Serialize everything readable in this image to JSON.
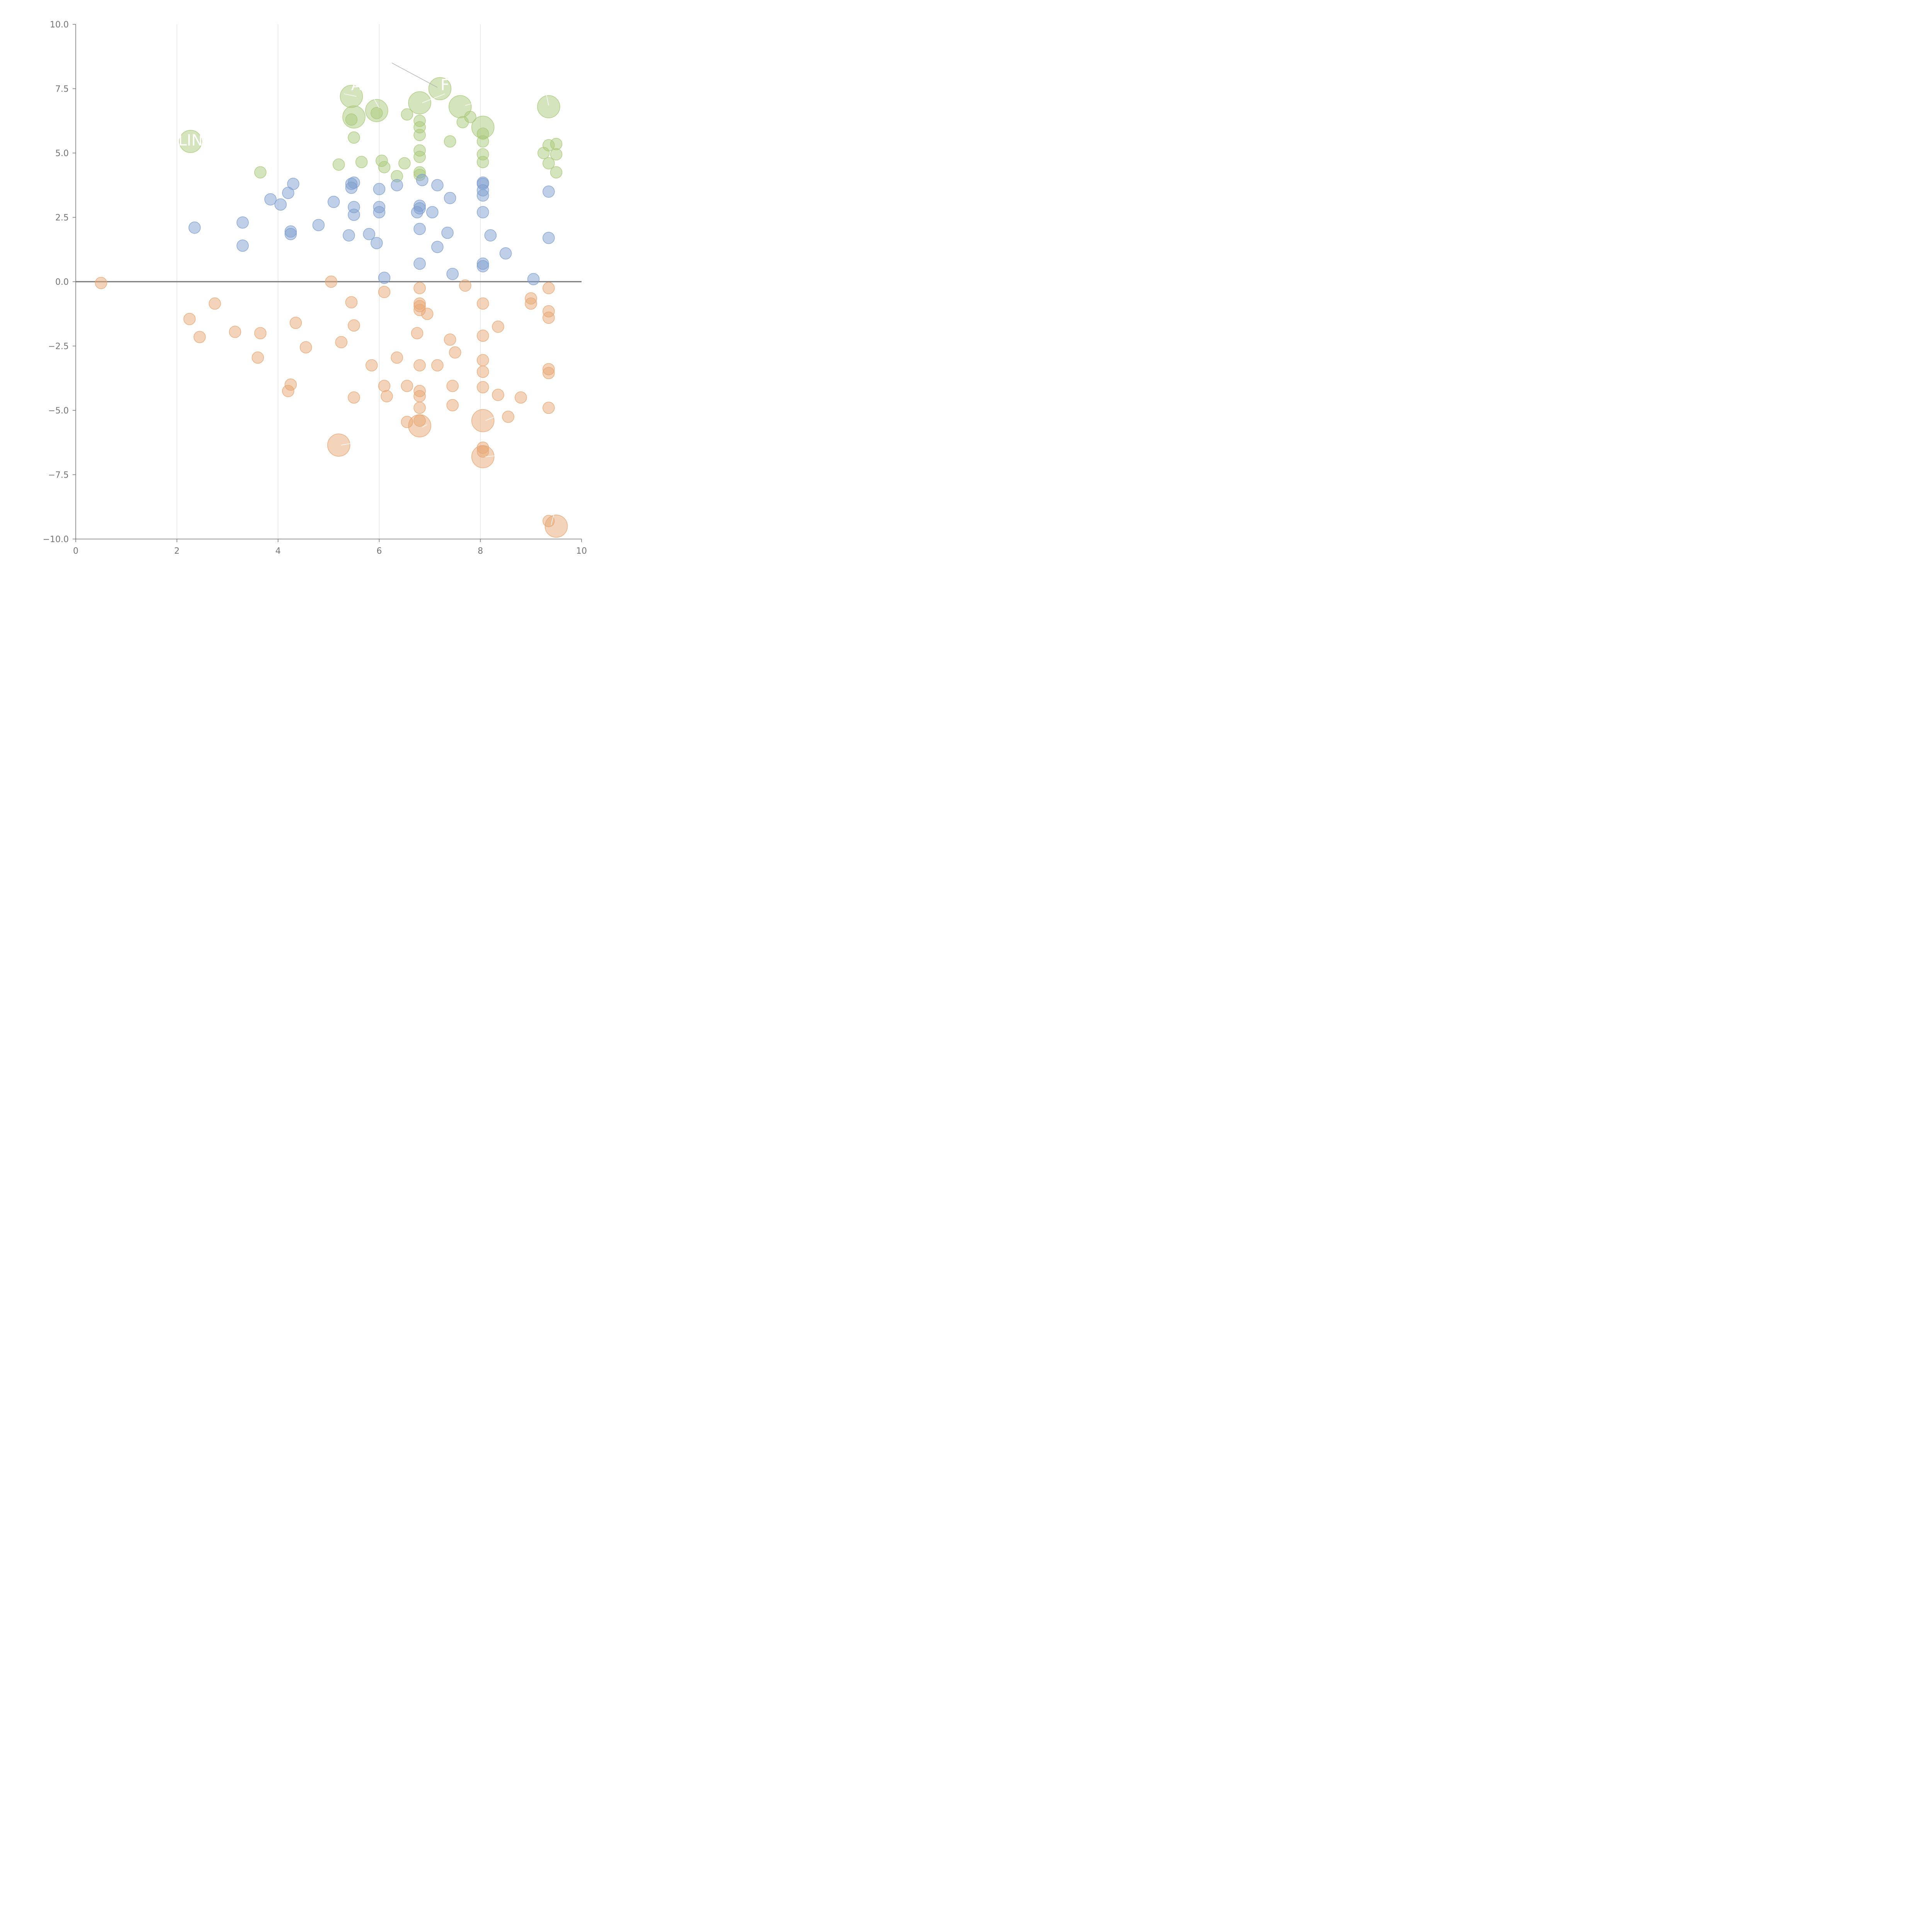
{
  "chart_data": {
    "type": "scatter",
    "title": "",
    "xlabel": "",
    "ylabel": "",
    "xlim": [
      0,
      10
    ],
    "ylim": [
      -10,
      10
    ],
    "x_ticks": [
      "0",
      "2",
      "4",
      "6",
      "8",
      "10"
    ],
    "x_tick_values": [
      0,
      2,
      4,
      6,
      8,
      10
    ],
    "y_ticks": [
      "10.0",
      "7.5",
      "5.0",
      "2.5",
      "0.0",
      "−2.5",
      "−5.0",
      "−7.5",
      "−10.0"
    ],
    "y_tick_values": [
      10,
      7.5,
      5,
      2.5,
      0,
      -2.5,
      -5,
      -7.5,
      -10
    ],
    "vertical_gridlines": [
      2,
      4,
      6,
      8
    ],
    "zero_line": 0,
    "legend": "none",
    "series": [
      {
        "name": "green",
        "color": "#a9c97a",
        "points": [
          {
            "x": 5.45,
            "y": 7.2,
            "size": 3
          },
          {
            "x": 5.5,
            "y": 6.4,
            "size": 3
          },
          {
            "x": 5.45,
            "y": 6.3,
            "size": 1
          },
          {
            "x": 5.5,
            "y": 5.6,
            "size": 1
          },
          {
            "x": 5.95,
            "y": 6.65,
            "size": 3
          },
          {
            "x": 5.95,
            "y": 6.55,
            "size": 1
          },
          {
            "x": 6.8,
            "y": 6.95,
            "size": 3
          },
          {
            "x": 7.2,
            "y": 7.5,
            "size": 3
          },
          {
            "x": 7.6,
            "y": 6.8,
            "size": 3
          },
          {
            "x": 9.35,
            "y": 6.8,
            "size": 3
          },
          {
            "x": 8.05,
            "y": 6.0,
            "size": 3
          },
          {
            "x": 2.27,
            "y": 5.45,
            "size": 3
          },
          {
            "x": 6.55,
            "y": 6.5,
            "size": 1
          },
          {
            "x": 6.8,
            "y": 6.25,
            "size": 1
          },
          {
            "x": 6.8,
            "y": 6.0,
            "size": 1
          },
          {
            "x": 6.8,
            "y": 5.7,
            "size": 1
          },
          {
            "x": 6.8,
            "y": 5.1,
            "size": 1
          },
          {
            "x": 6.8,
            "y": 4.85,
            "size": 1
          },
          {
            "x": 6.8,
            "y": 4.25,
            "size": 1
          },
          {
            "x": 6.8,
            "y": 4.15,
            "size": 1
          },
          {
            "x": 7.65,
            "y": 6.2,
            "size": 1
          },
          {
            "x": 7.8,
            "y": 6.4,
            "size": 1
          },
          {
            "x": 7.4,
            "y": 5.45,
            "size": 1
          },
          {
            "x": 8.05,
            "y": 5.75,
            "size": 1
          },
          {
            "x": 8.05,
            "y": 5.45,
            "size": 1
          },
          {
            "x": 8.05,
            "y": 4.95,
            "size": 1
          },
          {
            "x": 8.05,
            "y": 4.65,
            "size": 1
          },
          {
            "x": 9.35,
            "y": 5.3,
            "size": 1
          },
          {
            "x": 9.5,
            "y": 5.35,
            "size": 1
          },
          {
            "x": 9.25,
            "y": 5.0,
            "size": 1
          },
          {
            "x": 9.5,
            "y": 4.95,
            "size": 1
          },
          {
            "x": 9.35,
            "y": 4.6,
            "size": 1
          },
          {
            "x": 9.5,
            "y": 4.25,
            "size": 1
          },
          {
            "x": 3.65,
            "y": 4.25,
            "size": 1
          },
          {
            "x": 5.2,
            "y": 4.55,
            "size": 1
          },
          {
            "x": 5.65,
            "y": 4.65,
            "size": 1
          },
          {
            "x": 6.05,
            "y": 4.7,
            "size": 1
          },
          {
            "x": 6.1,
            "y": 4.45,
            "size": 1
          },
          {
            "x": 6.35,
            "y": 4.1,
            "size": 1
          },
          {
            "x": 6.5,
            "y": 4.6,
            "size": 1
          }
        ]
      },
      {
        "name": "blue",
        "color": "#7f9fd0",
        "points": [
          {
            "x": 2.35,
            "y": 2.1,
            "size": 1
          },
          {
            "x": 3.3,
            "y": 2.3,
            "size": 1
          },
          {
            "x": 3.3,
            "y": 1.4,
            "size": 1
          },
          {
            "x": 3.85,
            "y": 3.2,
            "size": 1
          },
          {
            "x": 4.05,
            "y": 3.0,
            "size": 1
          },
          {
            "x": 4.2,
            "y": 3.45,
            "size": 1
          },
          {
            "x": 4.3,
            "y": 3.8,
            "size": 1
          },
          {
            "x": 4.25,
            "y": 1.95,
            "size": 1
          },
          {
            "x": 4.25,
            "y": 1.85,
            "size": 1
          },
          {
            "x": 4.8,
            "y": 2.2,
            "size": 1
          },
          {
            "x": 5.1,
            "y": 3.1,
            "size": 1
          },
          {
            "x": 5.45,
            "y": 3.8,
            "size": 1
          },
          {
            "x": 5.5,
            "y": 3.85,
            "size": 1
          },
          {
            "x": 5.45,
            "y": 3.65,
            "size": 1
          },
          {
            "x": 5.5,
            "y": 2.9,
            "size": 1
          },
          {
            "x": 5.5,
            "y": 2.6,
            "size": 1
          },
          {
            "x": 5.4,
            "y": 1.8,
            "size": 1
          },
          {
            "x": 5.8,
            "y": 1.85,
            "size": 1
          },
          {
            "x": 5.95,
            "y": 1.5,
            "size": 1
          },
          {
            "x": 6.0,
            "y": 3.6,
            "size": 1
          },
          {
            "x": 6.0,
            "y": 2.9,
            "size": 1
          },
          {
            "x": 6.0,
            "y": 2.7,
            "size": 1
          },
          {
            "x": 6.1,
            "y": 0.15,
            "size": 1
          },
          {
            "x": 6.35,
            "y": 3.75,
            "size": 1
          },
          {
            "x": 6.75,
            "y": 2.7,
            "size": 1
          },
          {
            "x": 6.8,
            "y": 2.95,
            "size": 1
          },
          {
            "x": 6.8,
            "y": 2.85,
            "size": 1
          },
          {
            "x": 6.8,
            "y": 2.05,
            "size": 1
          },
          {
            "x": 6.8,
            "y": 0.7,
            "size": 1
          },
          {
            "x": 6.85,
            "y": 3.95,
            "size": 1
          },
          {
            "x": 7.05,
            "y": 2.7,
            "size": 1
          },
          {
            "x": 7.15,
            "y": 3.75,
            "size": 1
          },
          {
            "x": 7.15,
            "y": 1.35,
            "size": 1
          },
          {
            "x": 7.35,
            "y": 1.9,
            "size": 1
          },
          {
            "x": 7.4,
            "y": 3.25,
            "size": 1
          },
          {
            "x": 7.45,
            "y": 0.3,
            "size": 1
          },
          {
            "x": 8.05,
            "y": 3.85,
            "size": 1
          },
          {
            "x": 8.05,
            "y": 3.8,
            "size": 1
          },
          {
            "x": 8.05,
            "y": 3.55,
            "size": 1
          },
          {
            "x": 8.05,
            "y": 3.35,
            "size": 1
          },
          {
            "x": 8.05,
            "y": 2.7,
            "size": 1
          },
          {
            "x": 8.05,
            "y": 0.7,
            "size": 1
          },
          {
            "x": 8.05,
            "y": 0.6,
            "size": 1
          },
          {
            "x": 8.2,
            "y": 1.8,
            "size": 1
          },
          {
            "x": 8.5,
            "y": 1.1,
            "size": 1
          },
          {
            "x": 9.05,
            "y": 0.1,
            "size": 1
          },
          {
            "x": 9.35,
            "y": 3.5,
            "size": 1
          },
          {
            "x": 9.35,
            "y": 1.7,
            "size": 1
          }
        ]
      },
      {
        "name": "orange",
        "color": "#e8a774",
        "points": [
          {
            "x": 0.5,
            "y": -0.05,
            "size": 1
          },
          {
            "x": 2.25,
            "y": -1.45,
            "size": 1
          },
          {
            "x": 2.45,
            "y": -2.15,
            "size": 1
          },
          {
            "x": 2.75,
            "y": -0.85,
            "size": 1
          },
          {
            "x": 3.15,
            "y": -1.95,
            "size": 1
          },
          {
            "x": 3.6,
            "y": -2.95,
            "size": 1
          },
          {
            "x": 3.65,
            "y": -2.0,
            "size": 1
          },
          {
            "x": 4.2,
            "y": -4.25,
            "size": 1
          },
          {
            "x": 4.25,
            "y": -4.0,
            "size": 1
          },
          {
            "x": 4.35,
            "y": -1.6,
            "size": 1
          },
          {
            "x": 4.55,
            "y": -2.55,
            "size": 1
          },
          {
            "x": 5.05,
            "y": 0.0,
            "size": 1
          },
          {
            "x": 5.25,
            "y": -2.35,
            "size": 1
          },
          {
            "x": 5.45,
            "y": -0.8,
            "size": 1
          },
          {
            "x": 5.5,
            "y": -1.7,
            "size": 1
          },
          {
            "x": 5.5,
            "y": -4.5,
            "size": 1
          },
          {
            "x": 5.85,
            "y": -3.25,
            "size": 1
          },
          {
            "x": 6.1,
            "y": -0.4,
            "size": 1
          },
          {
            "x": 6.1,
            "y": -4.05,
            "size": 1
          },
          {
            "x": 6.15,
            "y": -4.45,
            "size": 1
          },
          {
            "x": 6.35,
            "y": -2.95,
            "size": 1
          },
          {
            "x": 6.55,
            "y": -4.05,
            "size": 1
          },
          {
            "x": 6.55,
            "y": -5.45,
            "size": 1
          },
          {
            "x": 6.75,
            "y": -2.0,
            "size": 1
          },
          {
            "x": 6.8,
            "y": -0.25,
            "size": 1
          },
          {
            "x": 6.8,
            "y": -0.85,
            "size": 1
          },
          {
            "x": 6.8,
            "y": -0.95,
            "size": 1
          },
          {
            "x": 6.8,
            "y": -1.1,
            "size": 1
          },
          {
            "x": 6.8,
            "y": -3.25,
            "size": 1
          },
          {
            "x": 6.8,
            "y": -4.25,
            "size": 1
          },
          {
            "x": 6.8,
            "y": -4.45,
            "size": 1
          },
          {
            "x": 6.8,
            "y": -4.9,
            "size": 1
          },
          {
            "x": 6.8,
            "y": -5.4,
            "size": 1
          },
          {
            "x": 6.95,
            "y": -1.25,
            "size": 1
          },
          {
            "x": 7.15,
            "y": -3.25,
            "size": 1
          },
          {
            "x": 7.4,
            "y": -2.25,
            "size": 1
          },
          {
            "x": 7.45,
            "y": -4.05,
            "size": 1
          },
          {
            "x": 7.45,
            "y": -4.8,
            "size": 1
          },
          {
            "x": 7.5,
            "y": -2.75,
            "size": 1
          },
          {
            "x": 7.7,
            "y": -0.15,
            "size": 1
          },
          {
            "x": 8.05,
            "y": -0.85,
            "size": 1
          },
          {
            "x": 8.05,
            "y": -2.1,
            "size": 1
          },
          {
            "x": 8.05,
            "y": -3.05,
            "size": 1
          },
          {
            "x": 8.05,
            "y": -3.5,
            "size": 1
          },
          {
            "x": 8.05,
            "y": -4.1,
            "size": 1
          },
          {
            "x": 8.05,
            "y": -6.45,
            "size": 1
          },
          {
            "x": 8.05,
            "y": -6.6,
            "size": 1
          },
          {
            "x": 8.35,
            "y": -1.75,
            "size": 1
          },
          {
            "x": 8.35,
            "y": -4.4,
            "size": 1
          },
          {
            "x": 8.55,
            "y": -5.25,
            "size": 1
          },
          {
            "x": 8.8,
            "y": -4.5,
            "size": 1
          },
          {
            "x": 9.0,
            "y": -0.65,
            "size": 1
          },
          {
            "x": 9.0,
            "y": -0.85,
            "size": 1
          },
          {
            "x": 9.35,
            "y": -0.25,
            "size": 1
          },
          {
            "x": 9.35,
            "y": -1.15,
            "size": 1
          },
          {
            "x": 9.35,
            "y": -1.4,
            "size": 1
          },
          {
            "x": 9.35,
            "y": -3.4,
            "size": 1
          },
          {
            "x": 9.35,
            "y": -3.55,
            "size": 1
          },
          {
            "x": 9.35,
            "y": -4.9,
            "size": 1
          },
          {
            "x": 9.35,
            "y": -9.3,
            "size": 1
          },
          {
            "x": 6.8,
            "y": -5.6,
            "size": 3
          },
          {
            "x": 5.2,
            "y": -6.35,
            "size": 3
          },
          {
            "x": 8.05,
            "y": -5.4,
            "size": 3
          },
          {
            "x": 8.05,
            "y": -6.8,
            "size": 3
          },
          {
            "x": 9.5,
            "y": -9.5,
            "size": 3
          }
        ]
      }
    ],
    "annotations": [
      {
        "text": "LIN",
        "x": 2.27,
        "y": 5.5
      },
      {
        "text": "A",
        "x": 5.55,
        "y": 7.65
      },
      {
        "text": "F",
        "x": 7.3,
        "y": 7.65
      }
    ],
    "leader_lines": [
      {
        "from": [
          6.25,
          8.5
        ],
        "to": [
          7.15,
          7.55
        ],
        "color": "#b5b5b5"
      },
      {
        "from": [
          5.3,
          7.3
        ],
        "to": [
          5.55,
          7.2
        ],
        "color": "#ffffff"
      },
      {
        "from": [
          5.9,
          7.1
        ],
        "to": [
          6.0,
          6.75
        ],
        "color": "#ffffff"
      },
      {
        "from": [
          6.85,
          6.95
        ],
        "to": [
          7.3,
          7.3
        ],
        "color": "#ffffff"
      },
      {
        "from": [
          7.7,
          6.85
        ],
        "to": [
          7.9,
          6.95
        ],
        "color": "#ffffff"
      },
      {
        "from": [
          9.3,
          7.3
        ],
        "to": [
          9.35,
          6.85
        ],
        "color": "#ffffff"
      },
      {
        "from": [
          6.85,
          -5.65
        ],
        "to": [
          6.95,
          -5.55
        ],
        "color": "#ffffff"
      },
      {
        "from": [
          5.25,
          -6.35
        ],
        "to": [
          5.55,
          -6.25
        ],
        "color": "#ffffff"
      },
      {
        "from": [
          8.1,
          -5.4
        ],
        "to": [
          8.4,
          -5.15
        ],
        "color": "#ffffff"
      },
      {
        "from": [
          8.1,
          -6.8
        ],
        "to": [
          8.4,
          -6.75
        ],
        "color": "#ffffff"
      },
      {
        "from": [
          9.4,
          -9.45
        ],
        "to": [
          9.45,
          -9.05
        ],
        "color": "#ffffff"
      }
    ]
  }
}
